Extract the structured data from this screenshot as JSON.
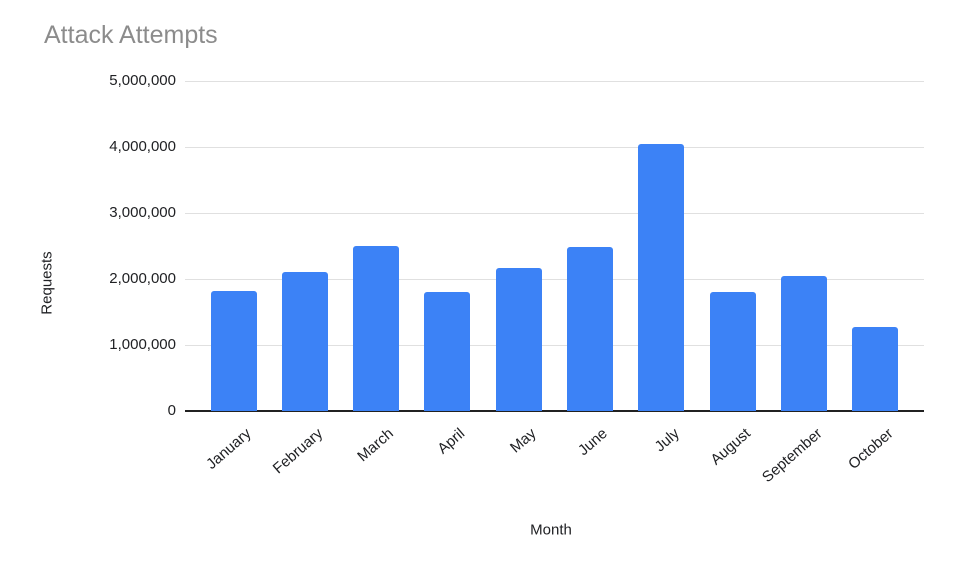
{
  "page": {
    "background_color": "#ffffff"
  },
  "chart_data": {
    "type": "bar",
    "title": "Attack Attempts",
    "xlabel": "Month",
    "ylabel": "Requests",
    "categories": [
      "January",
      "February",
      "March",
      "April",
      "May",
      "June",
      "July",
      "August",
      "September",
      "October"
    ],
    "values": [
      1820000,
      2110000,
      2500000,
      1800000,
      2170000,
      2490000,
      4050000,
      1800000,
      2040000,
      1270000
    ],
    "ylim": [
      0,
      5000000
    ],
    "ytick_interval": 1000000,
    "ytick_labels": [
      "0",
      "1,000,000",
      "2,000,000",
      "3,000,000",
      "4,000,000",
      "5,000,000"
    ],
    "grid": true,
    "legend_position": "none",
    "colors": {
      "bar": "#3c82f6",
      "gridline": "#e0e0e0",
      "axis_line": "#212121",
      "title_text": "#8c8c8c",
      "tick_text": "#202124"
    }
  }
}
